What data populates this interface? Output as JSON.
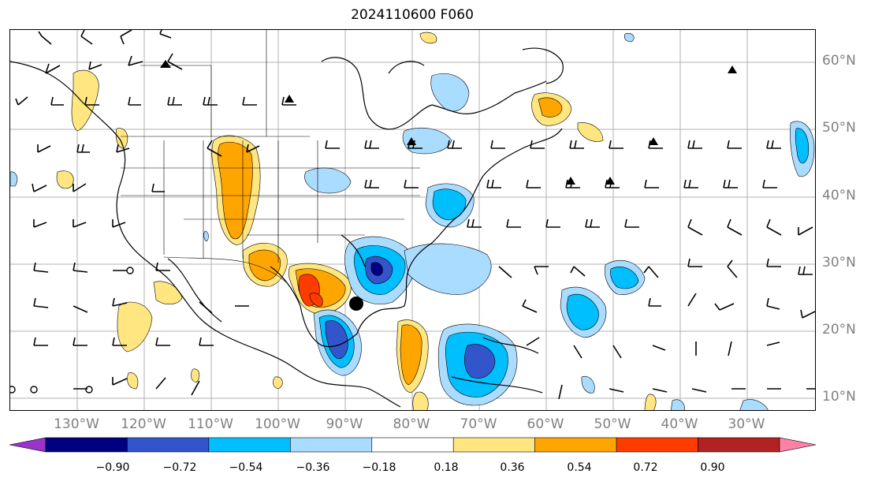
{
  "title": "2024110600 F060",
  "lat_labels": [
    "60°N",
    "50°N",
    "40°N",
    "30°N",
    "20°N",
    "10°N"
  ],
  "lon_labels": [
    "130°W",
    "120°W",
    "110°W",
    "100°W",
    "90°W",
    "80°W",
    "70°W",
    "60°W",
    "50°W",
    "40°W",
    "30°W"
  ],
  "colorbar": {
    "tick_labels": [
      "−0.90",
      "−0.72",
      "−0.54",
      "−0.36",
      "−0.18",
      "0.18",
      "0.36",
      "0.54",
      "0.72",
      "0.90"
    ],
    "colors": [
      "#9933cc",
      "#000080",
      "#3355cc",
      "#00bfff",
      "#aadcff",
      "#ffffff",
      "#ffe680",
      "#ffa500",
      "#ff3b00",
      "#b22222",
      "#ff80a8"
    ]
  },
  "marker": "storm-center-dot"
}
